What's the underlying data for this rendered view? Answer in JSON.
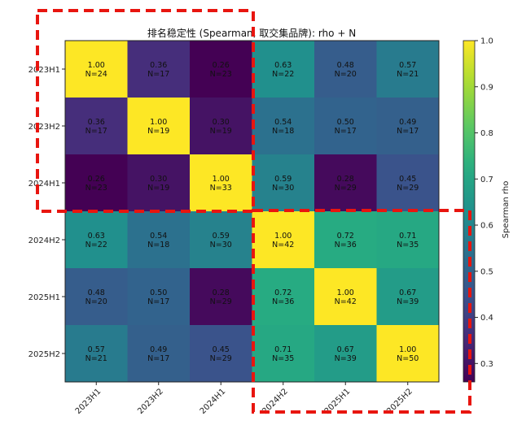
{
  "chart_data": {
    "type": "heatmap",
    "title": "排名稳定性 (Spearman, 取交集品牌): rho + N",
    "row_labels": [
      "2023H1",
      "2023H2",
      "2024H1",
      "2024H2",
      "2025H1",
      "2025H2"
    ],
    "col_labels": [
      "2023H1",
      "2023H2",
      "2024H1",
      "2024H2",
      "2025H1",
      "2025H2"
    ],
    "rho": [
      [
        1.0,
        0.36,
        0.26,
        0.63,
        0.48,
        0.57
      ],
      [
        0.36,
        1.0,
        0.3,
        0.54,
        0.5,
        0.49
      ],
      [
        0.26,
        0.3,
        1.0,
        0.59,
        0.28,
        0.45
      ],
      [
        0.63,
        0.54,
        0.59,
        1.0,
        0.72,
        0.71
      ],
      [
        0.48,
        0.5,
        0.28,
        0.72,
        1.0,
        0.67
      ],
      [
        0.57,
        0.49,
        0.45,
        0.71,
        0.67,
        1.0
      ]
    ],
    "n": [
      [
        24,
        17,
        23,
        22,
        20,
        21
      ],
      [
        17,
        19,
        19,
        18,
        17,
        17
      ],
      [
        23,
        19,
        33,
        30,
        29,
        29
      ],
      [
        22,
        18,
        30,
        42,
        36,
        35
      ],
      [
        20,
        17,
        29,
        36,
        42,
        39
      ],
      [
        21,
        17,
        29,
        35,
        39,
        50
      ]
    ],
    "colorbar": {
      "label": "Spearman rho",
      "range": [
        0.26,
        1.0
      ],
      "ticks": [
        0.3,
        0.4,
        0.5,
        0.6,
        0.7,
        0.8,
        0.9,
        1.0
      ]
    },
    "colormap": "viridis"
  },
  "overlay": {
    "color": "#e8150f"
  }
}
